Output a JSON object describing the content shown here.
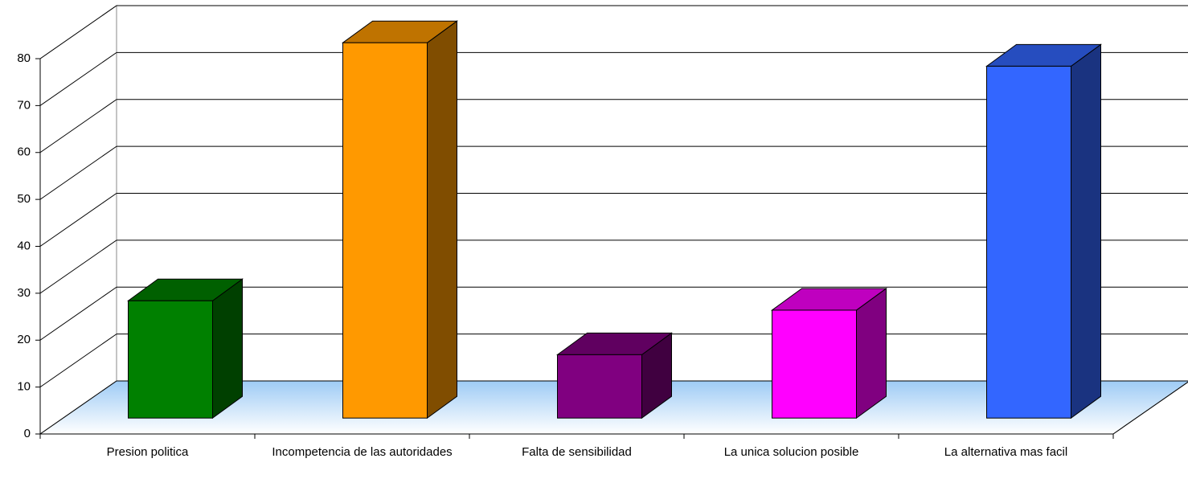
{
  "chart_data": {
    "type": "bar3d",
    "categories": [
      "Presion politica",
      "Incompetencia de las autoridades",
      "Falta de sensibilidad",
      "La unica solucion posible",
      "La alternativa mas facil"
    ],
    "values": [
      25,
      80,
      13.5,
      23,
      75
    ],
    "colors": [
      "#008000",
      "#ff9900",
      "#800080",
      "#ff00ff",
      "#3366ff"
    ],
    "ylim": [
      0,
      80
    ],
    "yticks": [
      0,
      10,
      20,
      30,
      40,
      50,
      60,
      70,
      80
    ],
    "grid": true
  }
}
